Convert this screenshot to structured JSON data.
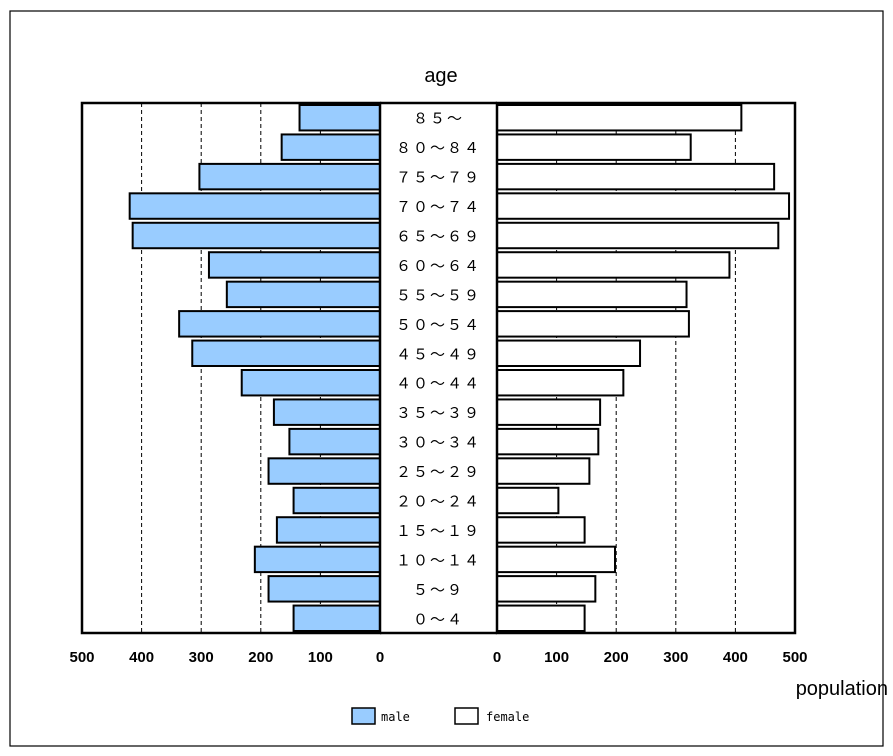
{
  "chart_data": {
    "type": "bar",
    "orientation": "horizontal",
    "layout": "population-pyramid",
    "title": "age",
    "xlabel": "population",
    "categories": [
      "85~",
      "80~84",
      "75~79",
      "70~74",
      "65~69",
      "60~64",
      "55~59",
      "50~54",
      "45~49",
      "40~44",
      "35~39",
      "30~34",
      "25~29",
      "20~24",
      "15~19",
      "10~14",
      "5~9",
      "0~4"
    ],
    "category_labels": [
      "８５～",
      "８０～８４",
      "７５～７９",
      "７０～７４",
      "６５～６９",
      "６０～６４",
      "５５～５９",
      "５０～５４",
      "４５～４９",
      "４０～４４",
      "３５～３９",
      "３０～３４",
      "２５～２９",
      "２０～２４",
      "１５～１９",
      "１０～１４",
      "５～９",
      "０～４"
    ],
    "series": [
      {
        "name": "male",
        "color": "#99ccff",
        "values": [
          135,
          165,
          303,
          420,
          415,
          287,
          257,
          337,
          315,
          232,
          178,
          152,
          187,
          145,
          173,
          210,
          187,
          145
        ]
      },
      {
        "name": "female",
        "color": "#ffffff",
        "values": [
          410,
          325,
          465,
          490,
          472,
          390,
          318,
          322,
          240,
          212,
          173,
          170,
          155,
          103,
          147,
          198,
          165,
          147
        ]
      }
    ],
    "xlim": [
      0,
      500
    ],
    "ticks": [
      "500",
      "400",
      "300",
      "200",
      "100",
      "0"
    ],
    "ticks_right": [
      "0",
      "100",
      "200",
      "300",
      "400",
      "500"
    ],
    "grid": "vertical dashed",
    "legend": {
      "position": "bottom-center",
      "items": [
        "male",
        "female"
      ]
    }
  }
}
